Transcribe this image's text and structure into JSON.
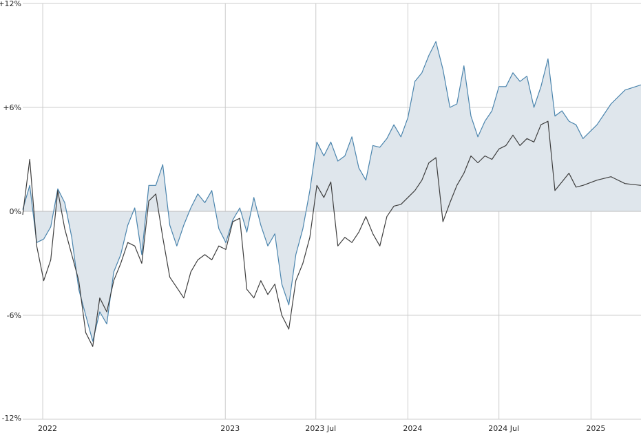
{
  "chart_data": {
    "type": "line",
    "title": "",
    "xlabel": "",
    "ylabel": "",
    "ylim": [
      -12,
      12
    ],
    "y_ticks": [
      {
        "value": 12,
        "label": "+12%"
      },
      {
        "value": 6,
        "label": "+6%"
      },
      {
        "value": 0,
        "label": "0%"
      },
      {
        "value": -6,
        "label": "-6%"
      },
      {
        "value": -12,
        "label": "-12%"
      }
    ],
    "xlim": [
      "2021-11-22",
      "2025-04-11"
    ],
    "x_ticks": [
      {
        "date": "2022-01-01",
        "label": "2022"
      },
      {
        "date": "2023-01-01",
        "label": "2023"
      },
      {
        "date": "2023-07-01",
        "label": "2023 Jul"
      },
      {
        "date": "2024-01-01",
        "label": "2024"
      },
      {
        "date": "2024-07-01",
        "label": "2024 Jul"
      },
      {
        "date": "2025-01-01",
        "label": "2025"
      }
    ],
    "grid": true,
    "legend": "none",
    "colors": {
      "series_blue": "#4a84ad",
      "area_fill": "#dfe6ec",
      "series_dark": "#3d3d3d",
      "grid": "#cccccc",
      "zero_line": "#bbbbbb"
    },
    "series": [
      {
        "style": "area",
        "color": "#4a84ad",
        "points": [
          [
            "2021-11-22",
            0.1
          ],
          [
            "2021-12-06",
            1.5
          ],
          [
            "2021-12-20",
            -1.8
          ],
          [
            "2022-01-03",
            -1.6
          ],
          [
            "2022-01-17",
            -0.9
          ],
          [
            "2022-01-31",
            1.3
          ],
          [
            "2022-02-14",
            0.5
          ],
          [
            "2022-02-28",
            -1.5
          ],
          [
            "2022-03-14",
            -4.5
          ],
          [
            "2022-03-28",
            -6.0
          ],
          [
            "2022-04-11",
            -7.5
          ],
          [
            "2022-04-25",
            -5.8
          ],
          [
            "2022-05-09",
            -6.5
          ],
          [
            "2022-05-23",
            -3.5
          ],
          [
            "2022-06-06",
            -2.5
          ],
          [
            "2022-06-20",
            -0.8
          ],
          [
            "2022-07-04",
            0.2
          ],
          [
            "2022-07-18",
            -2.5
          ],
          [
            "2022-08-01",
            1.5
          ],
          [
            "2022-08-15",
            1.5
          ],
          [
            "2022-08-29",
            2.7
          ],
          [
            "2022-09-12",
            -0.8
          ],
          [
            "2022-09-26",
            -2.0
          ],
          [
            "2022-10-10",
            -0.8
          ],
          [
            "2022-10-24",
            0.2
          ],
          [
            "2022-11-07",
            1.0
          ],
          [
            "2022-11-21",
            0.5
          ],
          [
            "2022-12-05",
            1.2
          ],
          [
            "2022-12-19",
            -1.0
          ],
          [
            "2023-01-02",
            -1.8
          ],
          [
            "2023-01-16",
            -0.5
          ],
          [
            "2023-01-30",
            0.2
          ],
          [
            "2023-02-13",
            -1.2
          ],
          [
            "2023-02-27",
            0.8
          ],
          [
            "2023-03-13",
            -0.8
          ],
          [
            "2023-03-27",
            -2.0
          ],
          [
            "2023-04-10",
            -1.3
          ],
          [
            "2023-04-24",
            -4.2
          ],
          [
            "2023-05-08",
            -5.4
          ],
          [
            "2023-05-22",
            -2.5
          ],
          [
            "2023-06-05",
            -1.0
          ],
          [
            "2023-06-19",
            1.2
          ],
          [
            "2023-07-03",
            4.0
          ],
          [
            "2023-07-17",
            3.2
          ],
          [
            "2023-07-31",
            4.0
          ],
          [
            "2023-08-14",
            2.9
          ],
          [
            "2023-08-28",
            3.2
          ],
          [
            "2023-09-11",
            4.3
          ],
          [
            "2023-09-25",
            2.5
          ],
          [
            "2023-10-09",
            1.8
          ],
          [
            "2023-10-23",
            3.8
          ],
          [
            "2023-11-06",
            3.7
          ],
          [
            "2023-11-20",
            4.2
          ],
          [
            "2023-12-04",
            5.0
          ],
          [
            "2023-12-18",
            4.3
          ],
          [
            "2024-01-01",
            5.4
          ],
          [
            "2024-01-15",
            7.5
          ],
          [
            "2024-01-29",
            8.0
          ],
          [
            "2024-02-12",
            9.0
          ],
          [
            "2024-02-26",
            9.8
          ],
          [
            "2024-03-11",
            8.2
          ],
          [
            "2024-03-25",
            6.0
          ],
          [
            "2024-04-08",
            6.2
          ],
          [
            "2024-04-22",
            8.4
          ],
          [
            "2024-05-06",
            5.5
          ],
          [
            "2024-05-20",
            4.3
          ],
          [
            "2024-06-03",
            5.2
          ],
          [
            "2024-06-17",
            5.8
          ],
          [
            "2024-07-01",
            7.2
          ],
          [
            "2024-07-15",
            7.2
          ],
          [
            "2024-07-29",
            8.0
          ],
          [
            "2024-08-12",
            7.5
          ],
          [
            "2024-08-26",
            7.8
          ],
          [
            "2024-09-09",
            6.0
          ],
          [
            "2024-09-23",
            7.2
          ],
          [
            "2024-10-07",
            8.8
          ],
          [
            "2024-10-21",
            5.5
          ],
          [
            "2024-11-04",
            5.8
          ],
          [
            "2024-11-18",
            5.2
          ],
          [
            "2024-12-02",
            5.0
          ],
          [
            "2024-12-16",
            4.2
          ],
          [
            "2025-01-13",
            5.0
          ],
          [
            "2025-02-10",
            6.2
          ],
          [
            "2025-03-10",
            7.0
          ],
          [
            "2025-04-11",
            7.3
          ]
        ]
      },
      {
        "style": "line",
        "color": "#3d3d3d",
        "points": [
          [
            "2021-11-22",
            -0.2
          ],
          [
            "2021-12-06",
            3.0
          ],
          [
            "2021-12-20",
            -2.0
          ],
          [
            "2022-01-03",
            -4.0
          ],
          [
            "2022-01-17",
            -2.8
          ],
          [
            "2022-01-31",
            1.2
          ],
          [
            "2022-02-14",
            -1.0
          ],
          [
            "2022-02-28",
            -2.5
          ],
          [
            "2022-03-14",
            -4.0
          ],
          [
            "2022-03-28",
            -7.0
          ],
          [
            "2022-04-11",
            -7.8
          ],
          [
            "2022-04-25",
            -5.0
          ],
          [
            "2022-05-09",
            -5.8
          ],
          [
            "2022-05-23",
            -4.0
          ],
          [
            "2022-06-06",
            -3.0
          ],
          [
            "2022-06-20",
            -1.8
          ],
          [
            "2022-07-04",
            -2.0
          ],
          [
            "2022-07-18",
            -3.0
          ],
          [
            "2022-08-01",
            0.6
          ],
          [
            "2022-08-15",
            1.0
          ],
          [
            "2022-08-29",
            -1.5
          ],
          [
            "2022-09-12",
            -3.8
          ],
          [
            "2022-09-26",
            -4.4
          ],
          [
            "2022-10-10",
            -5.0
          ],
          [
            "2022-10-24",
            -3.5
          ],
          [
            "2022-11-07",
            -2.8
          ],
          [
            "2022-11-21",
            -2.5
          ],
          [
            "2022-12-05",
            -2.8
          ],
          [
            "2022-12-19",
            -2.0
          ],
          [
            "2023-01-02",
            -2.2
          ],
          [
            "2023-01-16",
            -0.6
          ],
          [
            "2023-01-30",
            -0.4
          ],
          [
            "2023-02-13",
            -4.5
          ],
          [
            "2023-02-27",
            -5.0
          ],
          [
            "2023-03-13",
            -4.0
          ],
          [
            "2023-03-27",
            -4.8
          ],
          [
            "2023-04-10",
            -4.2
          ],
          [
            "2023-04-24",
            -6.0
          ],
          [
            "2023-05-08",
            -6.8
          ],
          [
            "2023-05-22",
            -4.0
          ],
          [
            "2023-06-05",
            -3.0
          ],
          [
            "2023-06-19",
            -1.5
          ],
          [
            "2023-07-03",
            1.5
          ],
          [
            "2023-07-17",
            0.8
          ],
          [
            "2023-07-31",
            1.7
          ],
          [
            "2023-08-14",
            -2.0
          ],
          [
            "2023-08-28",
            -1.5
          ],
          [
            "2023-09-11",
            -1.8
          ],
          [
            "2023-09-25",
            -1.2
          ],
          [
            "2023-10-09",
            -0.3
          ],
          [
            "2023-10-23",
            -1.3
          ],
          [
            "2023-11-06",
            -2.0
          ],
          [
            "2023-11-20",
            -0.3
          ],
          [
            "2023-12-04",
            0.3
          ],
          [
            "2023-12-18",
            0.4
          ],
          [
            "2024-01-01",
            0.8
          ],
          [
            "2024-01-15",
            1.2
          ],
          [
            "2024-01-29",
            1.8
          ],
          [
            "2024-02-12",
            2.8
          ],
          [
            "2024-02-26",
            3.1
          ],
          [
            "2024-03-11",
            -0.6
          ],
          [
            "2024-03-25",
            0.5
          ],
          [
            "2024-04-08",
            1.5
          ],
          [
            "2024-04-22",
            2.2
          ],
          [
            "2024-05-06",
            3.2
          ],
          [
            "2024-05-20",
            2.8
          ],
          [
            "2024-06-03",
            3.2
          ],
          [
            "2024-06-17",
            3.0
          ],
          [
            "2024-07-01",
            3.6
          ],
          [
            "2024-07-15",
            3.8
          ],
          [
            "2024-07-29",
            4.4
          ],
          [
            "2024-08-12",
            3.8
          ],
          [
            "2024-08-26",
            4.2
          ],
          [
            "2024-09-09",
            4.0
          ],
          [
            "2024-09-23",
            5.0
          ],
          [
            "2024-10-07",
            5.2
          ],
          [
            "2024-10-21",
            1.2
          ],
          [
            "2024-11-04",
            1.7
          ],
          [
            "2024-11-18",
            2.2
          ],
          [
            "2024-12-02",
            1.4
          ],
          [
            "2024-12-16",
            1.5
          ],
          [
            "2025-01-13",
            1.8
          ],
          [
            "2025-02-10",
            2.0
          ],
          [
            "2025-03-10",
            1.6
          ],
          [
            "2025-04-11",
            1.5
          ]
        ]
      }
    ]
  }
}
